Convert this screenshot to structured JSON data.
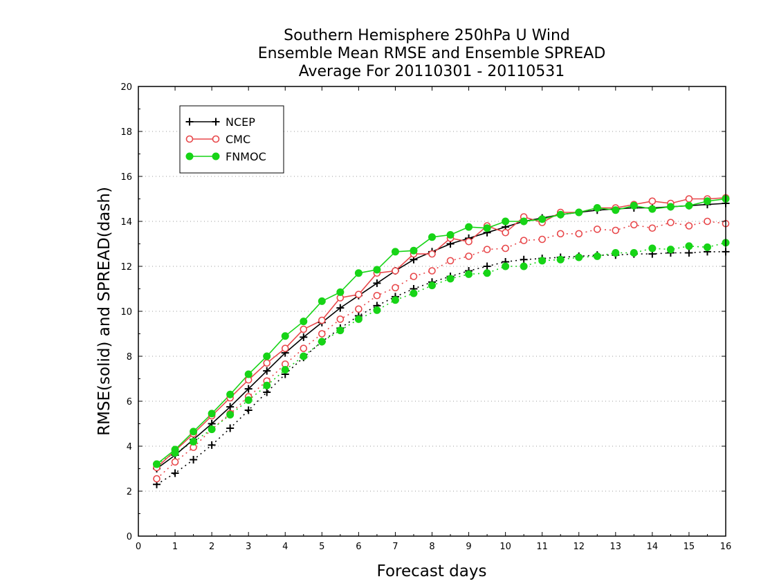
{
  "chart_data": {
    "type": "line",
    "title_lines": [
      "Southern Hemisphere 250hPa U Wind",
      "Ensemble Mean RMSE and Ensemble SPREAD",
      "Average For 20110301 - 20110531"
    ],
    "xlabel": "Forecast days",
    "ylabel": "RMSE(solid) and SPREAD(dash)",
    "xlim": [
      0,
      16
    ],
    "ylim": [
      0,
      20
    ],
    "xticks": [
      "0",
      "1",
      "2",
      "3",
      "4",
      "5",
      "6",
      "7",
      "8",
      "9",
      "10",
      "11",
      "12",
      "13",
      "14",
      "15",
      "16"
    ],
    "yticks": [
      "0",
      "2",
      "4",
      "6",
      "8",
      "10",
      "12",
      "14",
      "16",
      "18",
      "20"
    ],
    "grid": "horizontal dotted",
    "legend_position": "top-left",
    "x": [
      0.5,
      1,
      1.5,
      2,
      2.5,
      3,
      3.5,
      4,
      4.5,
      5,
      5.5,
      6,
      6.5,
      7,
      7.5,
      8,
      8.5,
      9,
      9.5,
      10,
      10.5,
      11,
      11.5,
      12,
      12.5,
      13,
      13.5,
      14,
      14.5,
      15,
      15.5,
      16
    ],
    "series": [
      {
        "name": "NCEP",
        "color": "#000000",
        "marker": "plus",
        "rmse": [
          3.0,
          3.6,
          4.3,
          5.0,
          5.75,
          6.55,
          7.35,
          8.15,
          8.85,
          9.5,
          10.15,
          10.7,
          11.25,
          11.8,
          12.3,
          12.65,
          13.0,
          13.25,
          13.5,
          13.75,
          14.0,
          14.15,
          14.3,
          14.4,
          14.5,
          14.55,
          14.6,
          14.6,
          14.65,
          14.7,
          14.75,
          14.8
        ],
        "spread": [
          2.3,
          2.8,
          3.4,
          4.05,
          4.8,
          5.6,
          6.4,
          7.2,
          7.95,
          8.65,
          9.25,
          9.8,
          10.25,
          10.65,
          11.0,
          11.3,
          11.55,
          11.8,
          12.0,
          12.2,
          12.3,
          12.35,
          12.4,
          12.45,
          12.5,
          12.5,
          12.55,
          12.55,
          12.6,
          12.6,
          12.65,
          12.65
        ]
      },
      {
        "name": "CMC",
        "color": "#e8474a",
        "marker": "circle",
        "rmse": [
          3.05,
          3.8,
          4.55,
          5.35,
          6.15,
          6.95,
          7.7,
          8.35,
          9.2,
          9.6,
          10.6,
          10.75,
          11.7,
          11.8,
          12.55,
          12.55,
          13.25,
          13.1,
          13.8,
          13.5,
          14.2,
          13.95,
          14.4,
          14.4,
          14.6,
          14.6,
          14.75,
          14.9,
          14.8,
          15.0,
          15.0,
          15.05
        ],
        "spread": [
          2.55,
          3.3,
          3.95,
          4.75,
          5.45,
          6.2,
          6.9,
          7.65,
          8.35,
          9.0,
          9.65,
          10.1,
          10.7,
          11.05,
          11.55,
          11.8,
          12.25,
          12.45,
          12.75,
          12.8,
          13.15,
          13.2,
          13.45,
          13.45,
          13.65,
          13.6,
          13.85,
          13.7,
          13.95,
          13.8,
          14.0,
          13.9
        ]
      },
      {
        "name": "FNMOC",
        "color": "#17d417",
        "marker": "dot",
        "rmse": [
          3.2,
          3.85,
          4.65,
          5.45,
          6.3,
          7.2,
          8.0,
          8.9,
          9.55,
          10.45,
          10.85,
          11.7,
          11.85,
          12.65,
          12.7,
          13.3,
          13.4,
          13.75,
          13.7,
          14.0,
          14.0,
          14.1,
          14.3,
          14.4,
          14.6,
          14.5,
          14.7,
          14.55,
          14.65,
          14.7,
          14.9,
          15.0
        ],
        "spread": [
          3.2,
          3.7,
          4.2,
          4.75,
          5.4,
          6.05,
          6.7,
          7.4,
          8.0,
          8.65,
          9.15,
          9.65,
          10.05,
          10.5,
          10.8,
          11.15,
          11.45,
          11.65,
          11.7,
          12.0,
          12.0,
          12.25,
          12.3,
          12.4,
          12.45,
          12.6,
          12.6,
          12.8,
          12.75,
          12.9,
          12.85,
          13.05
        ]
      }
    ]
  }
}
